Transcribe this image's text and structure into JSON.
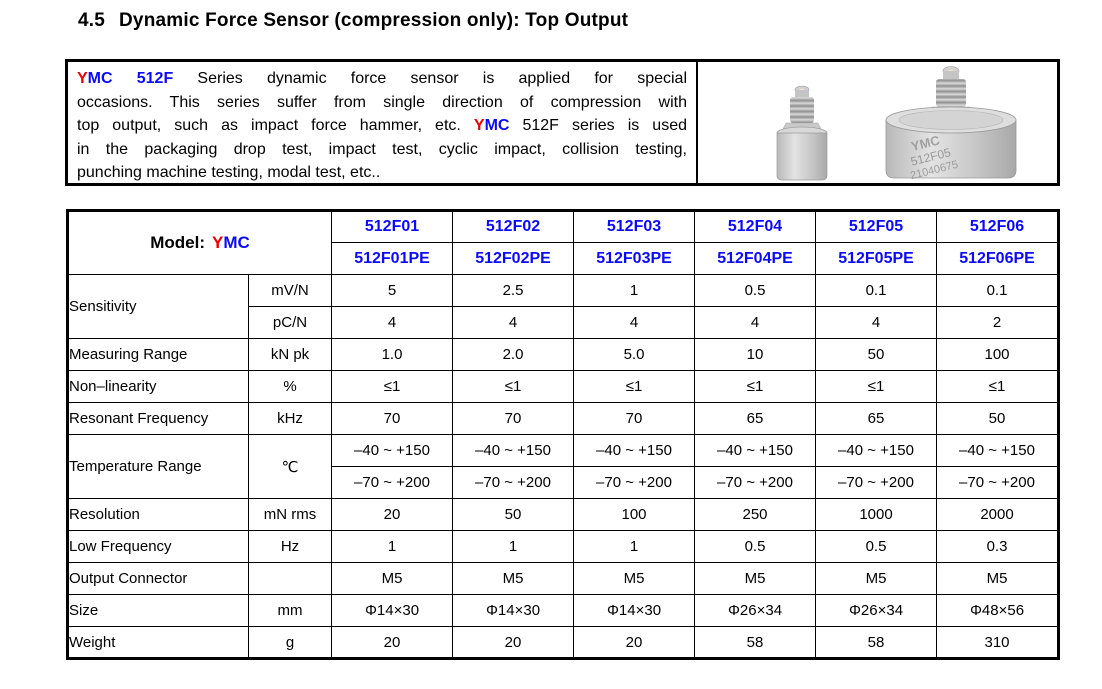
{
  "page": {
    "section_number": "4.5",
    "title": "Dynamic Force Sensor (compression only): Top Output"
  },
  "intro": {
    "lines": [
      [
        {
          "t": "Y",
          "c": "r"
        },
        {
          "t": "MC",
          "c": "b"
        },
        {
          "t": " 512F",
          "c": "b"
        },
        {
          "t": " Series dynamic force sensor is applied for special",
          "c": ""
        }
      ],
      [
        {
          "t": "occasions. This series suffer from single direction of compression with",
          "c": ""
        }
      ],
      [
        {
          "t": "top output, such as impact force hammer, etc. ",
          "c": ""
        },
        {
          "t": "Y",
          "c": "r"
        },
        {
          "t": "MC",
          "c": "b"
        },
        {
          "t": " 512F series is used",
          "c": ""
        }
      ],
      [
        {
          "t": "in the packaging drop test, impact test, cyclic impact, collision testing,",
          "c": ""
        }
      ],
      [
        {
          "t": "punching machine testing, modal test, etc..",
          "c": ""
        }
      ]
    ]
  },
  "photos": {
    "large_engraving": {
      "brand": "YMC",
      "model": "512F05",
      "serial": "21040675"
    }
  },
  "table": {
    "model_header": {
      "label": "Model:",
      "brand_red": "Y",
      "brand_blue": "MC"
    },
    "models": [
      "512F01",
      "512F02",
      "512F03",
      "512F04",
      "512F05",
      "512F06"
    ],
    "models_pe": [
      "512F01PE",
      "512F02PE",
      "512F03PE",
      "512F04PE",
      "512F05PE",
      "512F06PE"
    ],
    "rows": [
      {
        "label": "Sensitivity",
        "subrows": [
          {
            "unit": "mV/N",
            "values": [
              "5",
              "2.5",
              "1",
              "0.5",
              "0.1",
              "0.1"
            ]
          },
          {
            "unit": "pC/N",
            "values": [
              "4",
              "4",
              "4",
              "4",
              "4",
              "2"
            ]
          }
        ]
      },
      {
        "label": "Measuring Range",
        "unit": "kN pk",
        "values": [
          "1.0",
          "2.0",
          "5.0",
          "10",
          "50",
          "100"
        ]
      },
      {
        "label": "Non–linearity",
        "unit": "%",
        "values": [
          "≤1",
          "≤1",
          "≤1",
          "≤1",
          "≤1",
          "≤1"
        ]
      },
      {
        "label": "Resonant Frequency",
        "unit": "kHz",
        "values": [
          "70",
          "70",
          "70",
          "65",
          "65",
          "50"
        ]
      },
      {
        "label": "Temperature Range",
        "unit": "℃",
        "subrows": [
          {
            "values": [
              "–40 ~ +150",
              "–40 ~ +150",
              "–40 ~ +150",
              "–40 ~ +150",
              "–40 ~ +150",
              "–40 ~ +150"
            ]
          },
          {
            "values": [
              "–70 ~ +200",
              "–70 ~ +200",
              "–70 ~ +200",
              "–70 ~ +200",
              "–70 ~ +200",
              "–70 ~ +200"
            ]
          }
        ]
      },
      {
        "label": "Resolution",
        "unit": "mN rms",
        "values": [
          "20",
          "50",
          "100",
          "250",
          "1000",
          "2000"
        ]
      },
      {
        "label": "Low Frequency",
        "unit": "Hz",
        "values": [
          "1",
          "1",
          "1",
          "0.5",
          "0.5",
          "0.3"
        ]
      },
      {
        "label": "Output Connector",
        "unit": "",
        "values": [
          "M5",
          "M5",
          "M5",
          "M5",
          "M5",
          "M5"
        ]
      },
      {
        "label": "Size",
        "unit": "mm",
        "values": [
          "Φ14×30",
          "Φ14×30",
          "Φ14×30",
          "Φ26×34",
          "Φ26×34",
          "Φ48×56"
        ]
      },
      {
        "label": "Weight",
        "unit": "g",
        "values": [
          "20",
          "20",
          "20",
          "58",
          "58",
          "310"
        ]
      }
    ]
  },
  "colors": {
    "brand_red": "#f00000",
    "brand_blue": "#0a0aff",
    "border": "#000000"
  }
}
